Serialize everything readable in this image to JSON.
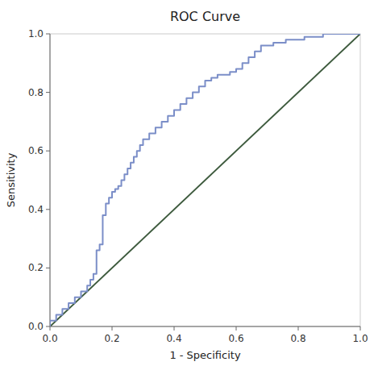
{
  "chart_data": {
    "type": "line",
    "title": "ROC Curve",
    "xlabel": "1 - Specificity",
    "ylabel": "Sensitivity",
    "xlim": [
      0.0,
      1.0
    ],
    "ylim": [
      0.0,
      1.0
    ],
    "xticks": [
      {
        "value": 0.0,
        "label": "0.0"
      },
      0.2,
      0.4,
      0.6,
      0.8,
      {
        "value": 1.0,
        "label": "1.0"
      }
    ],
    "yticks": [
      {
        "value": 0.0,
        "label": "0.0"
      },
      0.2,
      0.4,
      0.6,
      0.8,
      {
        "value": 1.0,
        "label": "1.0"
      }
    ],
    "grid": false,
    "series": [
      {
        "color": "#3d5a3d",
        "x": [
          0,
          1
        ],
        "values": [
          0,
          1
        ]
      },
      {
        "color": "#7b8ec8",
        "x": [
          0.0,
          0.0,
          0.02,
          0.02,
          0.04,
          0.04,
          0.06,
          0.06,
          0.08,
          0.08,
          0.1,
          0.1,
          0.12,
          0.12,
          0.13,
          0.13,
          0.14,
          0.14,
          0.15,
          0.15,
          0.16,
          0.16,
          0.17,
          0.17,
          0.18,
          0.18,
          0.19,
          0.19,
          0.2,
          0.2,
          0.21,
          0.21,
          0.22,
          0.22,
          0.23,
          0.23,
          0.24,
          0.24,
          0.25,
          0.25,
          0.26,
          0.26,
          0.27,
          0.27,
          0.28,
          0.28,
          0.29,
          0.29,
          0.3,
          0.3,
          0.32,
          0.32,
          0.34,
          0.34,
          0.36,
          0.36,
          0.38,
          0.38,
          0.4,
          0.4,
          0.42,
          0.42,
          0.44,
          0.44,
          0.46,
          0.46,
          0.48,
          0.48,
          0.5,
          0.5,
          0.52,
          0.52,
          0.54,
          0.54,
          0.56,
          0.56,
          0.58,
          0.58,
          0.6,
          0.6,
          0.62,
          0.62,
          0.64,
          0.64,
          0.66,
          0.66,
          0.68,
          0.68,
          0.72,
          0.72,
          0.76,
          0.76,
          0.82,
          0.82,
          0.88,
          0.88,
          1.0
        ],
        "values": [
          0.0,
          0.02,
          0.02,
          0.04,
          0.04,
          0.06,
          0.06,
          0.08,
          0.08,
          0.1,
          0.1,
          0.12,
          0.12,
          0.14,
          0.14,
          0.16,
          0.16,
          0.18,
          0.18,
          0.26,
          0.26,
          0.28,
          0.28,
          0.38,
          0.38,
          0.42,
          0.42,
          0.44,
          0.44,
          0.46,
          0.46,
          0.47,
          0.47,
          0.48,
          0.48,
          0.5,
          0.5,
          0.52,
          0.52,
          0.54,
          0.54,
          0.56,
          0.56,
          0.58,
          0.58,
          0.6,
          0.6,
          0.62,
          0.62,
          0.64,
          0.64,
          0.66,
          0.66,
          0.68,
          0.68,
          0.7,
          0.7,
          0.72,
          0.72,
          0.74,
          0.74,
          0.76,
          0.76,
          0.78,
          0.78,
          0.8,
          0.8,
          0.82,
          0.82,
          0.84,
          0.84,
          0.85,
          0.85,
          0.86,
          0.86,
          0.86,
          0.86,
          0.87,
          0.87,
          0.88,
          0.88,
          0.9,
          0.9,
          0.92,
          0.92,
          0.94,
          0.94,
          0.96,
          0.96,
          0.97,
          0.97,
          0.98,
          0.98,
          0.99,
          0.99,
          1.0,
          1.0
        ]
      }
    ]
  }
}
